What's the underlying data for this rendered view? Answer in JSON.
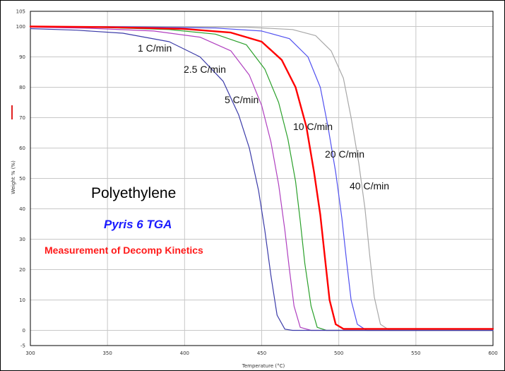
{
  "chart_data": {
    "type": "line",
    "title": "Polyethylene",
    "subtitle": "Pyris 6 TGA",
    "annotation": "Measurement of Decomp Kinetics",
    "xlabel": "Temperature (°C)",
    "ylabel": "Weight % (%)",
    "xlim": [
      300,
      600
    ],
    "ylim": [
      -5,
      105
    ],
    "xticks": [
      300,
      350,
      400,
      450,
      500,
      550,
      600
    ],
    "yticks": [
      -5,
      0,
      10,
      20,
      30,
      40,
      50,
      60,
      70,
      80,
      90,
      100,
      105
    ],
    "grid": true,
    "colors": {
      "text_instrument": "#1a1aff",
      "text_annotation": "#ff1a1a",
      "grid": "#c8c8c8",
      "axis_marker": "#e02020"
    },
    "series": [
      {
        "name": "1 C/min",
        "color": "#3a3aa8",
        "width": 1.2,
        "x": [
          300,
          330,
          360,
          390,
          410,
          425,
          435,
          442,
          448,
          452,
          456,
          460,
          465,
          470,
          600
        ],
        "y": [
          99.3,
          98.8,
          97.8,
          95,
          90,
          82,
          71,
          60,
          46,
          33,
          18,
          5,
          0.4,
          0,
          0
        ]
      },
      {
        "name": "2.5 C/min",
        "color": "#b040c0",
        "width": 1.2,
        "x": [
          300,
          340,
          380,
          410,
          430,
          442,
          450,
          456,
          461,
          465,
          468,
          471,
          475,
          482,
          600
        ],
        "y": [
          99.8,
          99.4,
          98.5,
          96.5,
          92,
          84,
          74,
          62,
          48,
          33,
          20,
          8,
          1,
          0,
          0
        ]
      },
      {
        "name": "5 C/min",
        "color": "#2aa02a",
        "width": 1.2,
        "x": [
          300,
          350,
          390,
          420,
          440,
          452,
          461,
          467,
          472,
          475,
          478,
          482,
          486,
          492,
          600
        ],
        "y": [
          99.9,
          99.6,
          99,
          97.5,
          94,
          86,
          75,
          63,
          49,
          36,
          22,
          8,
          1,
          0,
          0
        ]
      },
      {
        "name": "10 C/min",
        "color": "#ff0000",
        "width": 2.4,
        "x": [
          300,
          350,
          400,
          430,
          450,
          463,
          472,
          479,
          484,
          488,
          491,
          494,
          498,
          503,
          510,
          600
        ],
        "y": [
          100,
          99.8,
          99.2,
          98,
          95,
          89,
          80,
          67,
          52,
          38,
          24,
          10,
          2,
          0.5,
          0.5,
          0.5
        ]
      },
      {
        "name": "20 C/min",
        "color": "#5050f0",
        "width": 1.2,
        "x": [
          300,
          360,
          420,
          450,
          468,
          480,
          488,
          493,
          498,
          502,
          505,
          508,
          512,
          518,
          600
        ],
        "y": [
          100,
          99.9,
          99.5,
          98.5,
          96,
          90,
          80,
          67,
          52,
          37,
          23,
          10,
          2,
          0,
          0
        ]
      },
      {
        "name": "40 C/min",
        "color": "#a8a8a8",
        "width": 1.2,
        "x": [
          300,
          380,
          440,
          470,
          485,
          495,
          503,
          508,
          513,
          517,
          520,
          523,
          527,
          533,
          600
        ],
        "y": [
          100,
          100,
          99.8,
          99,
          97,
          92,
          83,
          70,
          55,
          40,
          25,
          11,
          2,
          0,
          0
        ]
      }
    ]
  }
}
